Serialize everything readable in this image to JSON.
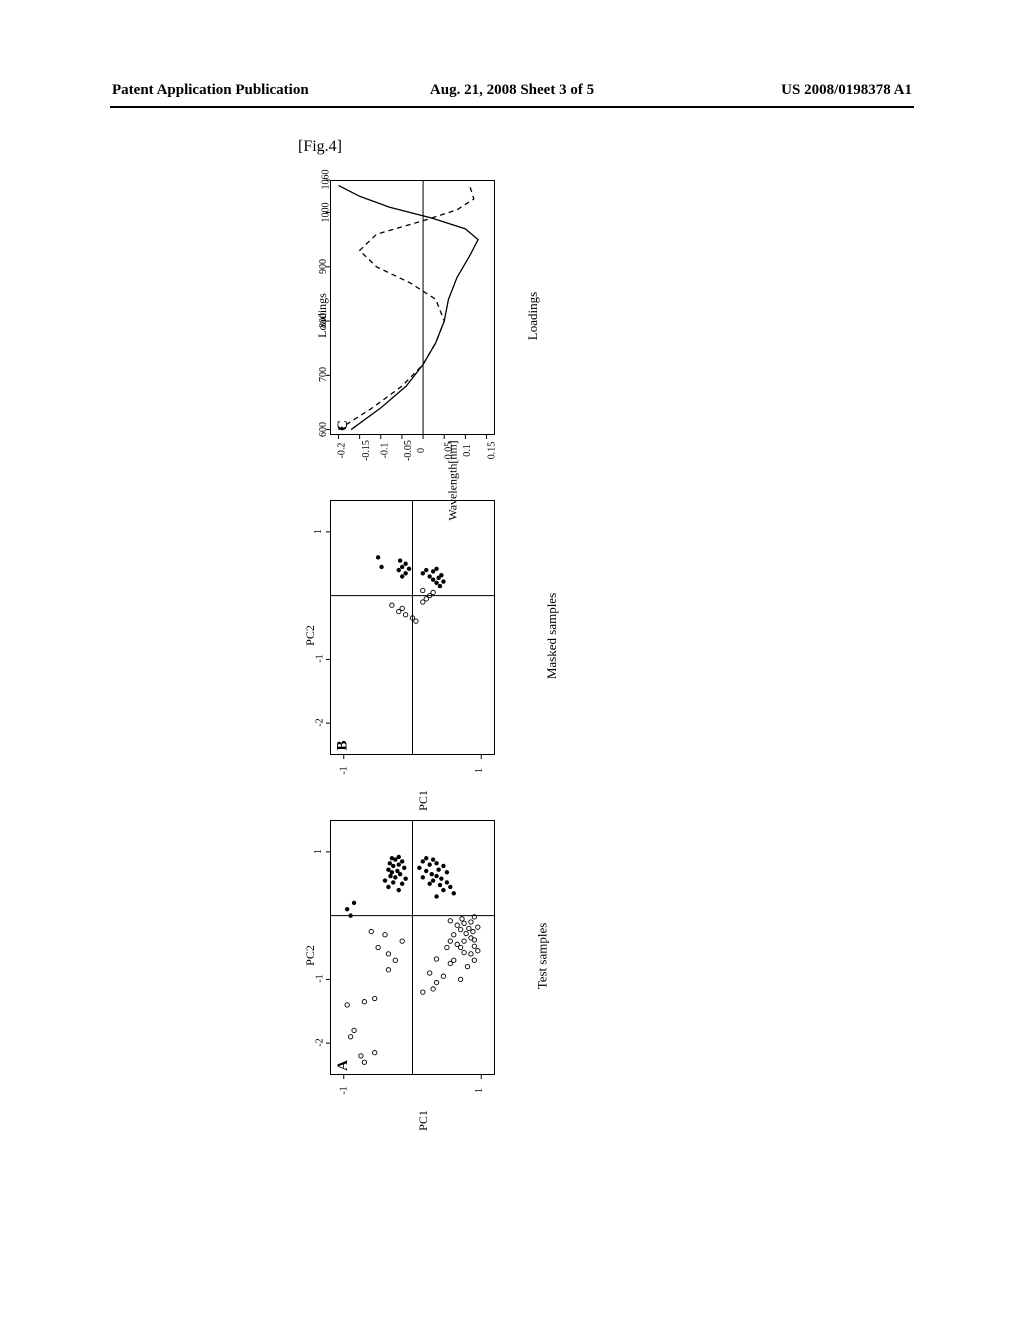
{
  "header": {
    "left": "Patent Application Publication",
    "center": "Aug. 21, 2008  Sheet 3 of 5",
    "right": "US 2008/0198378 A1"
  },
  "figure_label": "[Fig.4]",
  "panels": {
    "A": {
      "letter": "A",
      "title": "Test samples",
      "xlabel": "PC1",
      "ylabel": "PC2",
      "xlim": [
        -2.5,
        1.5
      ],
      "ylim": [
        -1.2,
        1.2
      ],
      "xticks": [
        -2,
        -1,
        1
      ],
      "xtick_labels": [
        "-2",
        "-1",
        "1"
      ],
      "yticks": [
        -1,
        1
      ],
      "ytick_labels": [
        "-1",
        "1"
      ],
      "x_zero_line": true,
      "y_zero_line": true,
      "points_open": [
        [
          -2.3,
          -0.7
        ],
        [
          -2.2,
          -0.75
        ],
        [
          -2.15,
          -0.55
        ],
        [
          -1.9,
          -0.9
        ],
        [
          -1.8,
          -0.85
        ],
        [
          -1.4,
          -0.95
        ],
        [
          -1.35,
          -0.7
        ],
        [
          -1.3,
          -0.55
        ],
        [
          -1.2,
          0.15
        ],
        [
          -1.15,
          0.3
        ],
        [
          -1.05,
          0.35
        ],
        [
          -1.0,
          0.7
        ],
        [
          -0.95,
          0.45
        ],
        [
          -0.9,
          0.25
        ],
        [
          -0.85,
          -0.35
        ],
        [
          -0.8,
          0.8
        ],
        [
          -0.75,
          0.55
        ],
        [
          -0.7,
          0.9
        ],
        [
          -0.7,
          0.6
        ],
        [
          -0.68,
          0.35
        ],
        [
          -0.6,
          0.85
        ],
        [
          -0.58,
          0.75
        ],
        [
          -0.55,
          0.95
        ],
        [
          -0.5,
          0.5
        ],
        [
          -0.5,
          0.7
        ],
        [
          -0.48,
          0.9
        ],
        [
          -0.45,
          0.65
        ],
        [
          -0.4,
          0.75
        ],
        [
          -0.4,
          0.55
        ],
        [
          -0.38,
          0.9
        ],
        [
          -0.35,
          0.85
        ],
        [
          -0.3,
          0.6
        ],
        [
          -0.28,
          0.78
        ],
        [
          -0.25,
          0.88
        ],
        [
          -0.22,
          0.7
        ],
        [
          -0.2,
          0.82
        ],
        [
          -0.18,
          0.95
        ],
        [
          -0.15,
          0.65
        ],
        [
          -0.12,
          0.75
        ],
        [
          -0.1,
          0.85
        ],
        [
          -0.08,
          0.55
        ],
        [
          -0.05,
          0.72
        ],
        [
          -0.02,
          0.9
        ],
        [
          -0.7,
          -0.25
        ],
        [
          -0.6,
          -0.35
        ],
        [
          -0.5,
          -0.5
        ],
        [
          -0.4,
          -0.15
        ],
        [
          -0.3,
          -0.4
        ],
        [
          -0.25,
          -0.6
        ]
      ],
      "points_filled": [
        [
          0.3,
          0.35
        ],
        [
          0.35,
          0.6
        ],
        [
          0.4,
          0.45
        ],
        [
          0.45,
          0.55
        ],
        [
          0.48,
          0.4
        ],
        [
          0.5,
          0.25
        ],
        [
          0.52,
          0.5
        ],
        [
          0.55,
          0.3
        ],
        [
          0.58,
          0.42
        ],
        [
          0.6,
          0.15
        ],
        [
          0.62,
          0.35
        ],
        [
          0.65,
          0.28
        ],
        [
          0.68,
          0.5
        ],
        [
          0.7,
          0.2
        ],
        [
          0.72,
          0.38
        ],
        [
          0.75,
          0.1
        ],
        [
          0.78,
          0.45
        ],
        [
          0.8,
          0.25
        ],
        [
          0.82,
          0.35
        ],
        [
          0.85,
          0.15
        ],
        [
          0.88,
          0.3
        ],
        [
          0.9,
          0.2
        ],
        [
          0.4,
          -0.2
        ],
        [
          0.45,
          -0.35
        ],
        [
          0.5,
          -0.15
        ],
        [
          0.52,
          -0.28
        ],
        [
          0.55,
          -0.4
        ],
        [
          0.58,
          -0.1
        ],
        [
          0.6,
          -0.25
        ],
        [
          0.62,
          -0.32
        ],
        [
          0.65,
          -0.18
        ],
        [
          0.68,
          -0.3
        ],
        [
          0.7,
          -0.22
        ],
        [
          0.72,
          -0.35
        ],
        [
          0.75,
          -0.12
        ],
        [
          0.78,
          -0.28
        ],
        [
          0.8,
          -0.2
        ],
        [
          0.82,
          -0.33
        ],
        [
          0.85,
          -0.15
        ],
        [
          0.88,
          -0.25
        ],
        [
          0.9,
          -0.3
        ],
        [
          0.92,
          -0.2
        ],
        [
          0.0,
          -0.9
        ],
        [
          0.1,
          -0.95
        ],
        [
          0.2,
          -0.85
        ]
      ]
    },
    "B": {
      "letter": "B",
      "title": "Masked samples",
      "xlabel": "PC1",
      "ylabel": "PC2",
      "xlim": [
        -2.5,
        1.5
      ],
      "ylim": [
        -1.2,
        1.2
      ],
      "xticks": [
        -2,
        -1,
        1
      ],
      "xtick_labels": [
        "-2",
        "-1",
        "1"
      ],
      "yticks": [
        -1,
        1
      ],
      "ytick_labels": [
        "-1",
        "1"
      ],
      "x_zero_line": true,
      "y_zero_line": true,
      "points_open": [
        [
          -0.4,
          0.05
        ],
        [
          -0.35,
          0.0
        ],
        [
          -0.3,
          -0.1
        ],
        [
          -0.25,
          -0.2
        ],
        [
          -0.2,
          -0.15
        ],
        [
          -0.15,
          -0.3
        ],
        [
          -0.1,
          0.15
        ],
        [
          -0.05,
          0.2
        ],
        [
          0.0,
          0.25
        ],
        [
          0.05,
          0.3
        ],
        [
          0.08,
          0.15
        ]
      ],
      "points_filled": [
        [
          0.15,
          0.4
        ],
        [
          0.2,
          0.35
        ],
        [
          0.22,
          0.45
        ],
        [
          0.25,
          0.3
        ],
        [
          0.28,
          0.38
        ],
        [
          0.3,
          0.25
        ],
        [
          0.32,
          0.42
        ],
        [
          0.35,
          0.15
        ],
        [
          0.38,
          0.3
        ],
        [
          0.4,
          0.2
        ],
        [
          0.42,
          0.35
        ],
        [
          0.3,
          -0.15
        ],
        [
          0.35,
          -0.1
        ],
        [
          0.4,
          -0.2
        ],
        [
          0.42,
          -0.05
        ],
        [
          0.45,
          -0.15
        ],
        [
          0.5,
          -0.1
        ],
        [
          0.55,
          -0.18
        ],
        [
          0.6,
          -0.5
        ],
        [
          0.45,
          -0.45
        ]
      ]
    },
    "C": {
      "letter": "C",
      "title": "Loadings",
      "xlabel": "Wavelength[nm]",
      "ylabel": "Loadings",
      "xlim": [
        590,
        1060
      ],
      "ylim": [
        -0.22,
        0.17
      ],
      "xticks": [
        600,
        700,
        800,
        900,
        1000,
        1060
      ],
      "xtick_labels": [
        "600",
        "700",
        "800",
        "900",
        "1000",
        "1060"
      ],
      "yticks": [
        -0.2,
        -0.15,
        -0.1,
        -0.05,
        0,
        0.05,
        0.1,
        0.15
      ],
      "ytick_labels": [
        "-0.2",
        "-0.15",
        "-0.1",
        "-0.05",
        "0",
        "0.05",
        "0.1",
        "0.15"
      ],
      "y_zero_line": true,
      "line_solid": [
        [
          600,
          -0.17
        ],
        [
          640,
          -0.1
        ],
        [
          680,
          -0.04
        ],
        [
          720,
          0.0
        ],
        [
          760,
          0.03
        ],
        [
          800,
          0.05
        ],
        [
          840,
          0.06
        ],
        [
          880,
          0.08
        ],
        [
          920,
          0.11
        ],
        [
          950,
          0.13
        ],
        [
          970,
          0.1
        ],
        [
          990,
          0.02
        ],
        [
          1010,
          -0.08
        ],
        [
          1030,
          -0.15
        ],
        [
          1050,
          -0.2
        ]
      ],
      "line_dashed": [
        [
          600,
          -0.2
        ],
        [
          640,
          -0.12
        ],
        [
          680,
          -0.05
        ],
        [
          720,
          0.0
        ],
        [
          760,
          0.03
        ],
        [
          800,
          0.05
        ],
        [
          840,
          0.03
        ],
        [
          870,
          -0.03
        ],
        [
          900,
          -0.11
        ],
        [
          930,
          -0.15
        ],
        [
          960,
          -0.11
        ],
        [
          985,
          0.0
        ],
        [
          1005,
          0.08
        ],
        [
          1025,
          0.12
        ],
        [
          1050,
          0.11
        ]
      ]
    }
  },
  "colors": {
    "ink": "#000000",
    "bg": "#ffffff",
    "grain": "#555555"
  },
  "marker_radius": 2.2
}
